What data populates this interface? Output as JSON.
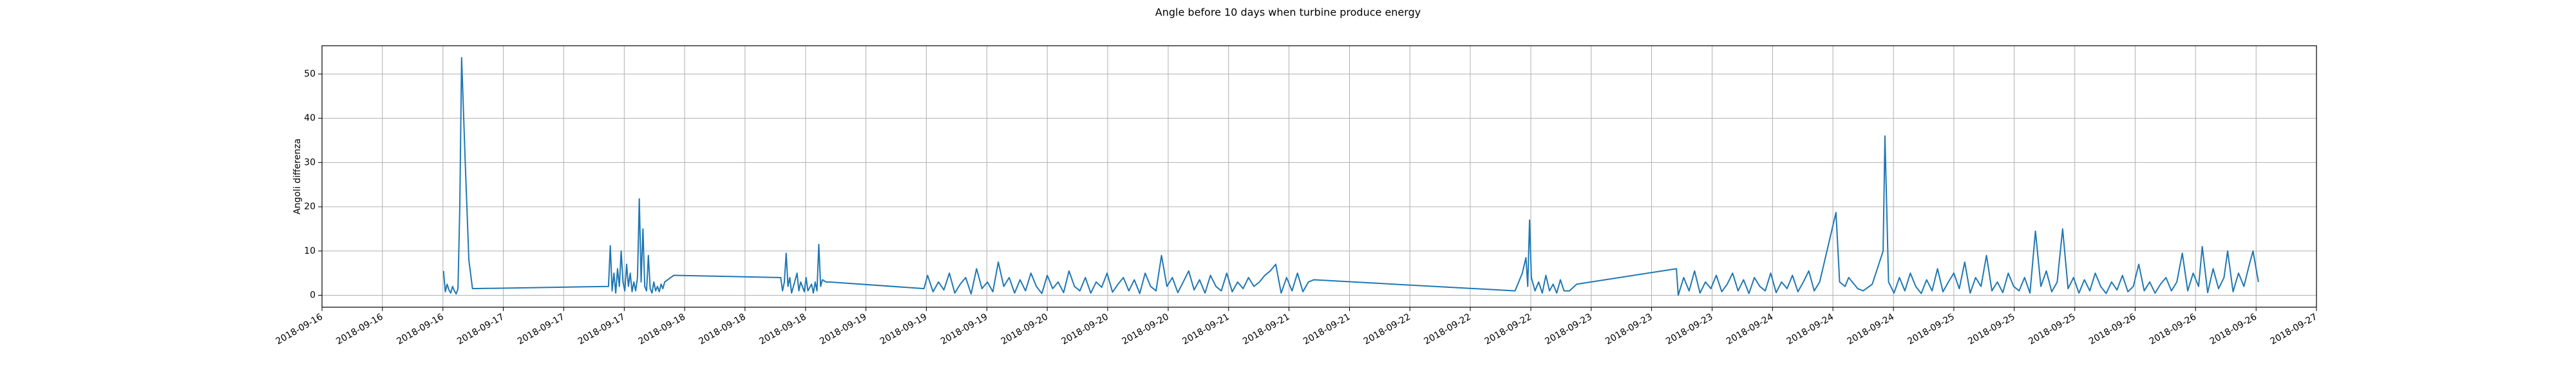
{
  "chart_data": {
    "type": "line",
    "title": "Angle before 10 days when turbine produce energy",
    "ylabel": "Angoli differenza",
    "color": "#1f77b4",
    "grid": true,
    "xlim": [
      16,
      27
    ],
    "ylim": [
      -2.7,
      56.4
    ],
    "yticks": [
      0,
      10,
      20,
      30,
      40,
      50
    ],
    "xticks": [
      {
        "value": 16,
        "label": "2018-09-16"
      },
      {
        "value": 16.333,
        "label": "2018-09-16"
      },
      {
        "value": 16.667,
        "label": "2018-09-16"
      },
      {
        "value": 17,
        "label": "2018-09-17"
      },
      {
        "value": 17.333,
        "label": "2018-09-17"
      },
      {
        "value": 17.667,
        "label": "2018-09-17"
      },
      {
        "value": 18,
        "label": "2018-09-18"
      },
      {
        "value": 18.333,
        "label": "2018-09-18"
      },
      {
        "value": 18.667,
        "label": "2018-09-18"
      },
      {
        "value": 19,
        "label": "2018-09-19"
      },
      {
        "value": 19.333,
        "label": "2018-09-19"
      },
      {
        "value": 19.667,
        "label": "2018-09-19"
      },
      {
        "value": 20,
        "label": "2018-09-20"
      },
      {
        "value": 20.333,
        "label": "2018-09-20"
      },
      {
        "value": 20.667,
        "label": "2018-09-20"
      },
      {
        "value": 21,
        "label": "2018-09-21"
      },
      {
        "value": 21.333,
        "label": "2018-09-21"
      },
      {
        "value": 21.667,
        "label": "2018-09-21"
      },
      {
        "value": 22,
        "label": "2018-09-22"
      },
      {
        "value": 22.333,
        "label": "2018-09-22"
      },
      {
        "value": 22.667,
        "label": "2018-09-22"
      },
      {
        "value": 23,
        "label": "2018-09-23"
      },
      {
        "value": 23.333,
        "label": "2018-09-23"
      },
      {
        "value": 23.667,
        "label": "2018-09-23"
      },
      {
        "value": 24,
        "label": "2018-09-24"
      },
      {
        "value": 24.333,
        "label": "2018-09-24"
      },
      {
        "value": 24.667,
        "label": "2018-09-24"
      },
      {
        "value": 25,
        "label": "2018-09-25"
      },
      {
        "value": 25.333,
        "label": "2018-09-25"
      },
      {
        "value": 25.667,
        "label": "2018-09-25"
      },
      {
        "value": 26,
        "label": "2018-09-26"
      },
      {
        "value": 26.333,
        "label": "2018-09-26"
      },
      {
        "value": 26.667,
        "label": "2018-09-26"
      },
      {
        "value": 27,
        "label": "2018-09-27"
      }
    ],
    "x": [
      16.67,
      16.68,
      16.69,
      16.7,
      16.71,
      16.72,
      16.73,
      16.74,
      16.75,
      16.76,
      16.77,
      16.79,
      16.81,
      16.83,
      17.58,
      17.59,
      17.6,
      17.61,
      17.62,
      17.63,
      17.64,
      17.65,
      17.66,
      17.67,
      17.68,
      17.69,
      17.7,
      17.71,
      17.72,
      17.73,
      17.74,
      17.75,
      17.76,
      17.77,
      17.78,
      17.79,
      17.8,
      17.81,
      17.82,
      17.83,
      17.84,
      17.85,
      17.86,
      17.87,
      17.88,
      17.89,
      17.94,
      18.53,
      18.54,
      18.55,
      18.56,
      18.57,
      18.58,
      18.59,
      18.6,
      18.62,
      18.63,
      18.64,
      18.66,
      18.67,
      18.68,
      18.7,
      18.71,
      18.72,
      18.73,
      18.74,
      18.75,
      18.76,
      18.78,
      18.8,
      19.32,
      19.34,
      19.37,
      19.4,
      19.43,
      19.46,
      19.49,
      19.52,
      19.55,
      19.58,
      19.61,
      19.64,
      19.67,
      19.7,
      19.73,
      19.76,
      19.79,
      19.82,
      19.85,
      19.88,
      19.91,
      19.94,
      19.97,
      20.0,
      20.03,
      20.06,
      20.09,
      20.12,
      20.15,
      20.18,
      20.21,
      20.24,
      20.27,
      20.3,
      20.33,
      20.36,
      20.39,
      20.42,
      20.45,
      20.48,
      20.51,
      20.54,
      20.57,
      20.6,
      20.63,
      20.66,
      20.69,
      20.72,
      20.75,
      20.78,
      20.81,
      20.84,
      20.87,
      20.9,
      20.93,
      20.96,
      20.99,
      21.02,
      21.05,
      21.08,
      21.11,
      21.14,
      21.17,
      21.2,
      21.23,
      21.26,
      21.29,
      21.32,
      21.35,
      21.38,
      21.41,
      21.44,
      21.47,
      22.58,
      22.6,
      22.62,
      22.64,
      22.65,
      22.66,
      22.67,
      22.69,
      22.71,
      22.73,
      22.75,
      22.77,
      22.79,
      22.81,
      22.83,
      22.85,
      22.88,
      22.92,
      23.47,
      23.48,
      23.51,
      23.54,
      23.57,
      23.6,
      23.63,
      23.66,
      23.69,
      23.72,
      23.75,
      23.78,
      23.81,
      23.84,
      23.87,
      23.9,
      23.93,
      23.96,
      23.99,
      24.02,
      24.05,
      24.08,
      24.11,
      24.14,
      24.17,
      24.2,
      24.23,
      24.26,
      24.35,
      24.37,
      24.4,
      24.42,
      24.47,
      24.5,
      24.55,
      24.61,
      24.62,
      24.64,
      24.67,
      24.7,
      24.73,
      24.76,
      24.79,
      24.82,
      24.85,
      24.88,
      24.91,
      24.94,
      24.97,
      25.0,
      25.03,
      25.06,
      25.09,
      25.12,
      25.15,
      25.18,
      25.21,
      25.24,
      25.27,
      25.3,
      25.33,
      25.36,
      25.39,
      25.42,
      25.45,
      25.48,
      25.51,
      25.54,
      25.57,
      25.6,
      25.63,
      25.66,
      25.69,
      25.72,
      25.75,
      25.78,
      25.81,
      25.84,
      25.87,
      25.9,
      25.93,
      25.96,
      25.99,
      26.02,
      26.05,
      26.08,
      26.11,
      26.14,
      26.17,
      26.2,
      26.23,
      26.26,
      26.29,
      26.32,
      26.35,
      26.37,
      26.4,
      26.43,
      26.46,
      26.49,
      26.51,
      26.54,
      26.57,
      26.6,
      26.63,
      26.65,
      26.68
    ],
    "values": [
      5.5,
      0.8,
      2.5,
      1.2,
      0.5,
      2,
      1,
      0.3,
      1.5,
      20,
      53.7,
      30,
      8,
      1.5,
      2,
      11.2,
      1,
      5,
      0.5,
      6,
      2,
      10,
      3,
      1,
      7,
      2,
      5,
      0.8,
      3,
      1,
      4,
      21.8,
      3,
      15,
      2,
      1,
      9,
      1.5,
      0.5,
      3,
      1,
      2,
      0.8,
      2.5,
      1.5,
      3,
      4.5,
      4.0,
      1,
      3,
      9.5,
      2,
      4,
      0.5,
      2,
      5,
      1,
      3,
      0.8,
      4,
      1,
      2.5,
      0.5,
      3,
      1,
      11.5,
      2,
      3.5,
      3,
      3,
      1.5,
      4.5,
      0.8,
      3,
      1.2,
      5,
      0.5,
      2.5,
      4,
      0.3,
      6,
      1.5,
      3,
      0.8,
      7.5,
      2,
      4,
      0.5,
      3.5,
      1,
      5,
      2,
      0.4,
      4.5,
      1.5,
      3,
      0.6,
      5.5,
      2,
      1,
      4,
      0.5,
      3,
      1.8,
      5,
      0.7,
      2.5,
      4,
      1,
      3.5,
      0.4,
      5,
      2,
      1,
      9,
      2,
      4,
      0.6,
      3,
      5.5,
      1.2,
      3.5,
      0.5,
      4.5,
      2,
      1,
      5,
      0.8,
      3,
      1.5,
      4,
      2,
      3,
      4.5,
      5.5,
      7,
      0.5,
      4,
      1,
      5,
      0.8,
      3,
      3.5,
      1,
      3,
      5,
      8.5,
      2,
      17,
      4,
      1,
      3,
      0.5,
      4.5,
      1,
      2.5,
      0.5,
      3.5,
      1,
      1,
      2.5,
      6,
      0,
      4,
      1,
      5.5,
      0.5,
      3,
      1.5,
      4.5,
      0.8,
      2.5,
      5,
      1,
      3.5,
      0.4,
      4,
      2,
      1,
      5,
      0.6,
      3,
      1.5,
      4.5,
      0.8,
      3,
      5.5,
      1,
      3,
      18.7,
      3,
      2,
      4,
      1.5,
      1,
      2.5,
      10,
      36,
      3,
      0.5,
      4,
      1,
      5,
      2,
      0.4,
      3.5,
      1,
      6,
      0.8,
      3,
      5,
      1.5,
      7.5,
      0.5,
      4,
      2,
      9,
      1,
      3,
      0.6,
      5,
      2,
      1,
      4,
      0.5,
      14.5,
      2,
      5.5,
      0.8,
      3,
      15,
      1.5,
      4,
      0.5,
      3.5,
      1,
      5,
      2,
      0.4,
      3,
      1.2,
      4.5,
      0.8,
      2,
      7,
      1,
      3,
      0.5,
      2.5,
      4,
      1,
      3,
      9.5,
      1,
      5,
      2,
      11,
      0.6,
      6,
      1.5,
      4,
      10,
      0.8,
      5,
      2,
      7,
      10,
      3
    ]
  }
}
